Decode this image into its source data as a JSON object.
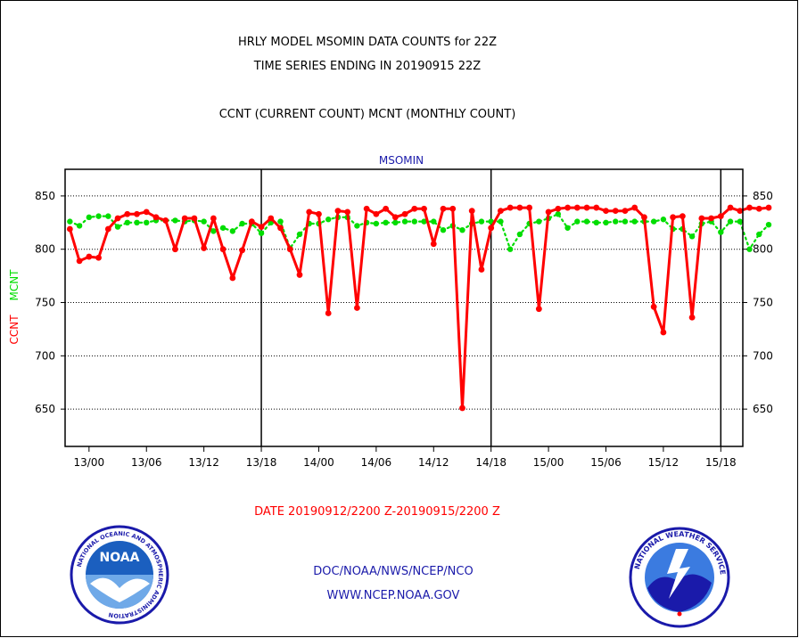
{
  "header": {
    "title_line1": "HRLY MODEL MSOMIN DATA COUNTS for 22Z",
    "title_line2": "TIME SERIES ENDING IN 20190915 22Z",
    "subtitle": "CCNT (CURRENT COUNT) MCNT (MONTHLY COUNT)"
  },
  "footer": {
    "date_range": "DATE 20190912/2200 Z-20190915/2200 Z",
    "org_line": "DOC/NOAA/NWS/NCEP/NCO",
    "url_line": "WWW.NCEP.NOAA.GOV"
  },
  "logos": {
    "noaa_text": "NOAA",
    "noaa_ring_top": "NATIONAL OCEANIC AND ATMOSPHERIC ADMINISTRATION",
    "noaa_ring_bottom": "U.S. DEPARTMENT OF COMMERCE",
    "nws_ring": "NATIONAL WEATHER SERVICE"
  },
  "colors": {
    "ccnt": "#ff0000",
    "mcnt": "#00dd00",
    "plot_label": "#1a1aaa",
    "grid": "#000000"
  },
  "chart_data": {
    "type": "line",
    "title": "MSOMIN",
    "ylabel_left": [
      "CCNT",
      "MCNT"
    ],
    "ylim": [
      615,
      875
    ],
    "xlim": [
      -0.5,
      70.3
    ],
    "y_ticks": [
      650,
      700,
      750,
      800,
      850
    ],
    "y_tick_labels": [
      "650",
      "700",
      "750",
      "800",
      "850"
    ],
    "x_ticks": [
      2,
      8,
      14,
      20,
      26,
      32,
      38,
      44,
      50,
      56,
      62,
      68
    ],
    "x_tick_labels": [
      "13/00",
      "13/06",
      "13/12",
      "13/18",
      "14/00",
      "14/06",
      "14/12",
      "14/18",
      "15/00",
      "15/06",
      "15/12",
      "15/18"
    ],
    "day_boundaries": [
      20,
      44,
      68
    ],
    "grid": "horizontal-dotted",
    "series": [
      {
        "name": "CCNT",
        "color": "#ff0000",
        "values": [
          819,
          789,
          793,
          792,
          819,
          829,
          833,
          833,
          835,
          830,
          827,
          800,
          829,
          829,
          801,
          829,
          800,
          773,
          799,
          826,
          821,
          829,
          820,
          800,
          776,
          835,
          833,
          740,
          836,
          835,
          745,
          838,
          833,
          838,
          830,
          833,
          838,
          838,
          805,
          838,
          838,
          651,
          836,
          781,
          820,
          836,
          839,
          839,
          839,
          744,
          835,
          838,
          839,
          839,
          839,
          839,
          836,
          836,
          836,
          839,
          830,
          746,
          722,
          830,
          831,
          736,
          829,
          829,
          831,
          839,
          836,
          839,
          838,
          839
        ]
      },
      {
        "name": "MCNT",
        "color": "#00dd00",
        "values": [
          826,
          822,
          830,
          831,
          831,
          821,
          825,
          825,
          825,
          827,
          827,
          827,
          826,
          827,
          826,
          817,
          820,
          817,
          824,
          824,
          815,
          825,
          826,
          801,
          814,
          824,
          824,
          828,
          830,
          830,
          822,
          825,
          824,
          825,
          825,
          826,
          826,
          826,
          826,
          818,
          822,
          818,
          824,
          826,
          826,
          826,
          800,
          814,
          824,
          826,
          829,
          833,
          820,
          826,
          826,
          825,
          825,
          826,
          826,
          826,
          826,
          826,
          828,
          819,
          819,
          812,
          824,
          826,
          816,
          826,
          826,
          800,
          814,
          823
        ]
      }
    ]
  }
}
